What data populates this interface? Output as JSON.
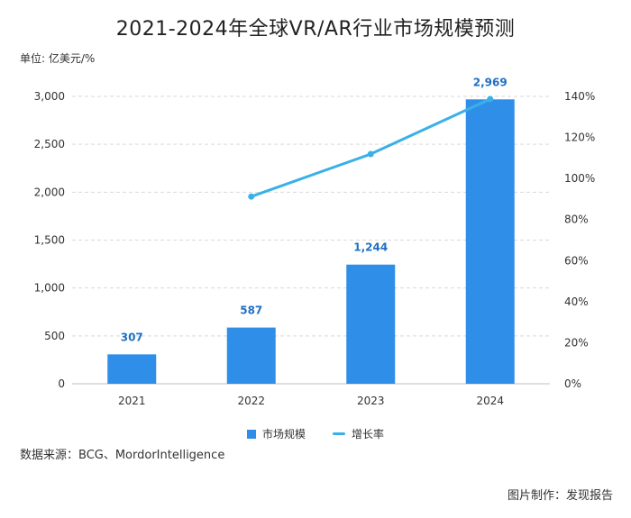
{
  "title": "2021-2024年全球VR/AR行业市场规模预测",
  "unit_label": "单位: 亿美元/%",
  "source": "数据来源：BCG、MordorIntelligence",
  "credit": "图片制作：发现报告",
  "chart_data": {
    "type": "bar",
    "categories": [
      "2021",
      "2022",
      "2023",
      "2024"
    ],
    "series": [
      {
        "name": "市场规模",
        "type": "bar",
        "axis": "left",
        "color": "#2f8fe8",
        "values": [
          307,
          587,
          1244,
          2969
        ],
        "labels": [
          "307",
          "587",
          "1,244",
          "2,969"
        ]
      },
      {
        "name": "增长率",
        "type": "line",
        "axis": "right",
        "color": "#3ab0e8",
        "values": [
          null,
          91.2,
          111.9,
          138.7
        ]
      }
    ],
    "y_left": {
      "min": 0,
      "max": 3000,
      "ticks": [
        0,
        500,
        1000,
        1500,
        2000,
        2500,
        3000
      ],
      "tick_labels": [
        "0",
        "500",
        "1,000",
        "1,500",
        "2,000",
        "2,500",
        "3,000"
      ]
    },
    "y_right": {
      "min": 0,
      "max": 140,
      "ticks": [
        0,
        20,
        40,
        60,
        80,
        100,
        120,
        140
      ],
      "tick_labels": [
        "0%",
        "20%",
        "40%",
        "60%",
        "80%",
        "100%",
        "120%",
        "140%"
      ]
    },
    "grid": true,
    "legend_position": "bottom-center",
    "label_color": "#1f6fc2"
  }
}
